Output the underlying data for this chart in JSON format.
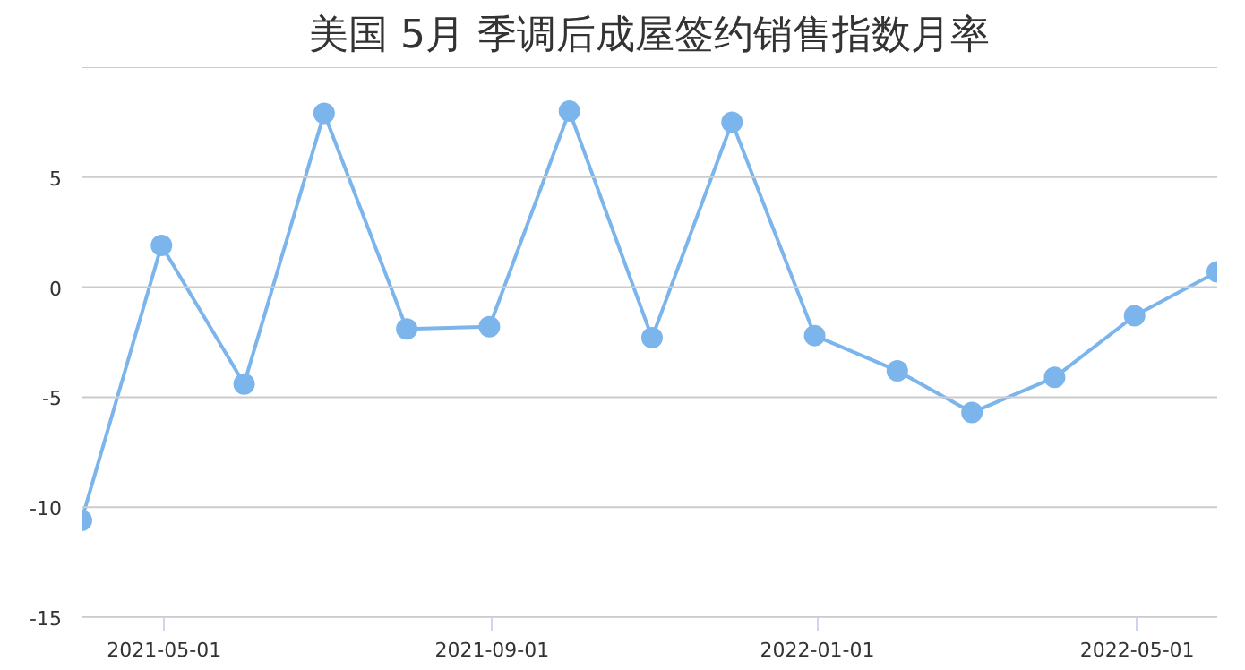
{
  "chart_data": {
    "type": "line",
    "title": "美国 5月 季调后成屋签约销售指数月率",
    "x": [
      "2021-03-31",
      "2021-04-30",
      "2021-05-31",
      "2021-06-30",
      "2021-07-31",
      "2021-08-31",
      "2021-09-30",
      "2021-10-31",
      "2021-11-30",
      "2021-12-31",
      "2022-01-31",
      "2022-02-28",
      "2022-03-31",
      "2022-04-30",
      "2022-05-31"
    ],
    "series": [
      {
        "color": "#7cb5ec",
        "values": [
          -10.6,
          1.9,
          -4.4,
          7.9,
          -1.9,
          -1.8,
          8.0,
          -2.3,
          7.5,
          -2.2,
          -3.8,
          -5.7,
          -4.1,
          -1.3,
          0.7
        ]
      }
    ],
    "xlim": [
      "2021-03-31",
      "2022-05-31"
    ],
    "xticks": [
      "2021-05-01",
      "2021-09-01",
      "2022-01-01",
      "2022-05-01"
    ],
    "ylim": [
      -15,
      10
    ],
    "yticks": [
      -15,
      -10,
      -5,
      0,
      5,
      {
        "value": 10,
        "label": null
      }
    ],
    "grid": "y",
    "marker": "circle",
    "line_style": "solid"
  }
}
